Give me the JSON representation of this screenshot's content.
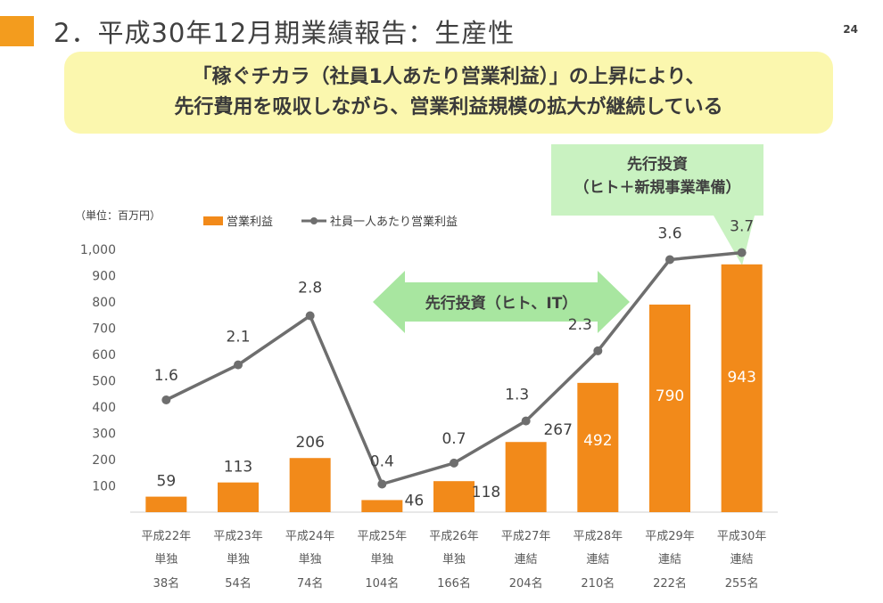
{
  "slide": {
    "title": "2．平成30年12月期業績報告：生産性",
    "page_number": "24",
    "headline_line1": "「稼ぐチカラ（社員1人あたり営業利益）」の上昇により、",
    "headline_line2": "先行費用を吸収しながら、営業利益規模の拡大が継続している",
    "annotation_box_line1": "先行投資",
    "annotation_box_line2": "（ヒト＋新規事業準備）",
    "arrow_label": "先行投資（ヒト、IT）",
    "unit_label": "（単位：百万円）"
  },
  "colors": {
    "accent": "#f39c1e",
    "bar": "#f28a1a",
    "line": "#6e6e6e",
    "callout_bg": "#fbf7ae",
    "note_bg": "#c9f2c1",
    "arrow": "#a8e6a0"
  },
  "chart_data": {
    "type": "bar",
    "title": "",
    "ylim": [
      0,
      1000
    ],
    "yticks": [
      "100",
      "200",
      "300",
      "400",
      "500",
      "600",
      "700",
      "800",
      "900",
      "1,000"
    ],
    "categories": [
      {
        "year": "平成22年",
        "scope": "単独",
        "employees": "38名"
      },
      {
        "year": "平成23年",
        "scope": "単独",
        "employees": "54名"
      },
      {
        "year": "平成24年",
        "scope": "単独",
        "employees": "74名"
      },
      {
        "year": "平成25年",
        "scope": "単独",
        "employees": "104名"
      },
      {
        "year": "平成26年",
        "scope": "単独",
        "employees": "166名"
      },
      {
        "year": "平成27年",
        "scope": "連結",
        "employees": "204名"
      },
      {
        "year": "平成28年",
        "scope": "連結",
        "employees": "210名"
      },
      {
        "year": "平成29年",
        "scope": "連結",
        "employees": "222名"
      },
      {
        "year": "平成30年",
        "scope": "連結",
        "employees": "255名"
      }
    ],
    "series": [
      {
        "name": "営業利益",
        "kind": "bar",
        "values": [
          59,
          113,
          206,
          46,
          118,
          267,
          492,
          790,
          943
        ],
        "labels": [
          "59",
          "113",
          "206",
          "46",
          "118",
          "267",
          "492",
          "790",
          "943"
        ]
      },
      {
        "name": "社員一人あたり営業利益",
        "kind": "line",
        "values": [
          1.6,
          2.1,
          2.8,
          0.4,
          0.7,
          1.3,
          2.3,
          3.6,
          3.7
        ],
        "labels": [
          "1.6",
          "2.1",
          "2.8",
          "0.4",
          "0.7",
          "1.3",
          "2.3",
          "3.6",
          "3.7"
        ]
      }
    ],
    "legend_position": "top"
  }
}
